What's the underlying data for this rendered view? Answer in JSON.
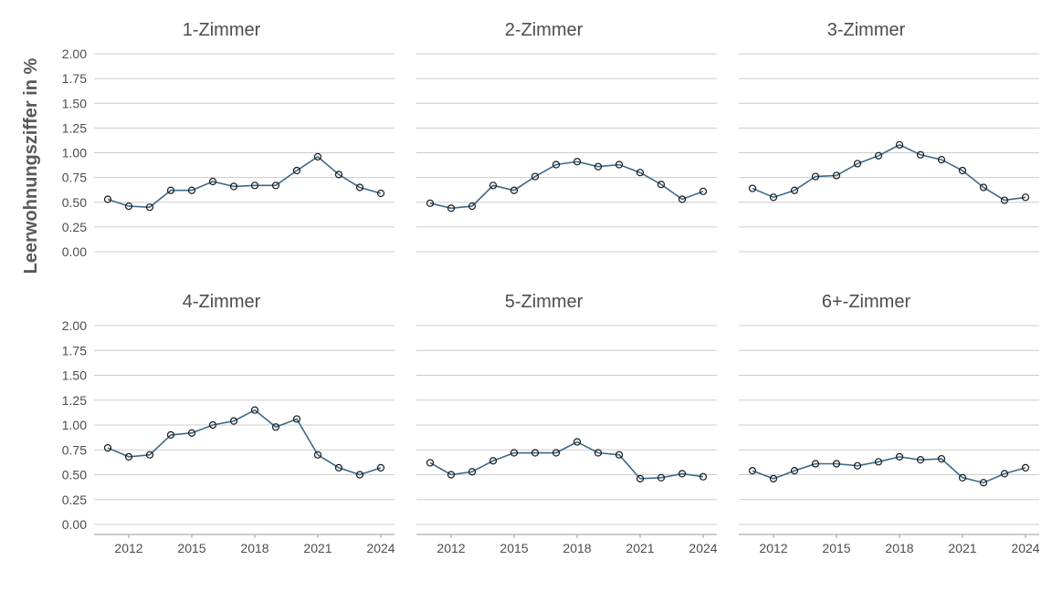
{
  "chart_data": {
    "type": "line",
    "ylabel": "Leerwohnungsziffer in %",
    "xlabel": "",
    "ylim": [
      0,
      2
    ],
    "yticks": [
      "0.00",
      "0.25",
      "0.50",
      "0.75",
      "1.00",
      "1.25",
      "1.50",
      "1.75",
      "2.00"
    ],
    "xticks": [
      "2012",
      "2015",
      "2018",
      "2021",
      "2024"
    ],
    "x": [
      2011,
      2012,
      2013,
      2014,
      2015,
      2016,
      2017,
      2018,
      2019,
      2020,
      2021,
      2022,
      2023,
      2024
    ],
    "grid": true,
    "line_color": "#3a6a8a",
    "marker_color": "#1a1a1a",
    "series": [
      {
        "name": "1-Zimmer",
        "values": [
          0.53,
          0.46,
          0.45,
          0.62,
          0.62,
          0.71,
          0.66,
          0.67,
          0.67,
          0.82,
          0.96,
          0.78,
          0.65,
          0.59
        ]
      },
      {
        "name": "2-Zimmer",
        "values": [
          0.49,
          0.44,
          0.46,
          0.67,
          0.62,
          0.76,
          0.88,
          0.91,
          0.86,
          0.88,
          0.8,
          0.68,
          0.53,
          0.61
        ]
      },
      {
        "name": "3-Zimmer",
        "values": [
          0.64,
          0.55,
          0.62,
          0.76,
          0.77,
          0.89,
          0.97,
          1.08,
          0.98,
          0.93,
          0.82,
          0.65,
          0.52,
          0.55
        ]
      },
      {
        "name": "4-Zimmer",
        "values": [
          0.77,
          0.68,
          0.7,
          0.9,
          0.92,
          1.0,
          1.04,
          1.15,
          0.98,
          1.06,
          0.7,
          0.57,
          0.5,
          0.57
        ]
      },
      {
        "name": "5-Zimmer",
        "values": [
          0.62,
          0.5,
          0.53,
          0.64,
          0.72,
          0.72,
          0.72,
          0.83,
          0.72,
          0.7,
          0.46,
          0.47,
          0.51,
          0.48
        ]
      },
      {
        "name": "6+-Zimmer",
        "values": [
          0.54,
          0.46,
          0.54,
          0.61,
          0.61,
          0.59,
          0.63,
          0.68,
          0.65,
          0.66,
          0.47,
          0.42,
          0.51,
          0.57
        ]
      }
    ]
  }
}
